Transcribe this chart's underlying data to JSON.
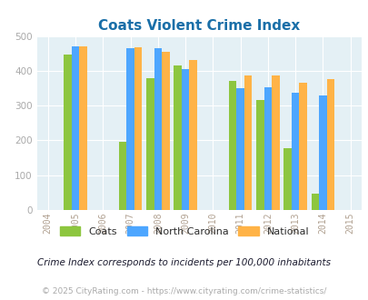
{
  "title": "Coats Violent Crime Index",
  "subtitle": "Crime Index corresponds to incidents per 100,000 inhabitants",
  "copyright": "© 2025 CityRating.com - https://www.cityrating.com/crime-statistics/",
  "years": [
    2005,
    2007,
    2008,
    2009,
    2011,
    2012,
    2013,
    2014
  ],
  "coats": [
    448,
    196,
    380,
    415,
    372,
    315,
    177,
    48
  ],
  "north_carolina": [
    469,
    466,
    466,
    405,
    350,
    353,
    336,
    328
  ],
  "national": [
    470,
    467,
    455,
    432,
    387,
    387,
    367,
    377
  ],
  "coats_color": "#8dc63f",
  "nc_color": "#4da6ff",
  "national_color": "#ffb347",
  "plot_bg": "#e4f0f5",
  "ylim": [
    0,
    500
  ],
  "yticks": [
    0,
    100,
    200,
    300,
    400,
    500
  ],
  "xtick_years": [
    2004,
    2005,
    2006,
    2007,
    2008,
    2009,
    2010,
    2011,
    2012,
    2013,
    2014,
    2015
  ],
  "title_color": "#1a6fa8",
  "subtitle_color": "#1a1a2e",
  "copyright_color": "#aaaaaa",
  "bar_width": 0.28
}
